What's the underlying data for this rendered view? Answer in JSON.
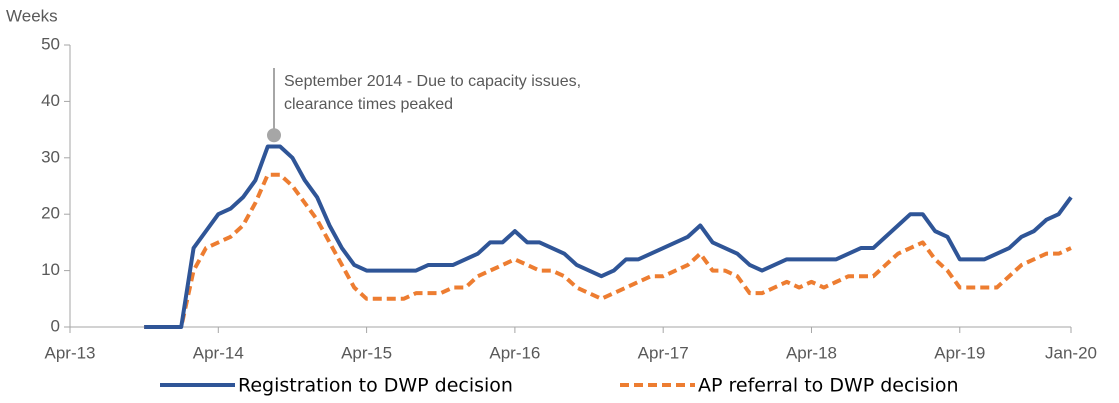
{
  "chart_data": {
    "type": "line",
    "y_label": "Weeks",
    "categories": [
      "Apr-13",
      null,
      null,
      null,
      null,
      null,
      null,
      null,
      null,
      null,
      null,
      null,
      "Apr-14",
      null,
      null,
      null,
      null,
      null,
      null,
      null,
      null,
      null,
      null,
      null,
      "Apr-15",
      null,
      null,
      null,
      null,
      null,
      null,
      null,
      null,
      null,
      null,
      null,
      "Apr-16",
      null,
      null,
      null,
      null,
      null,
      null,
      null,
      null,
      null,
      null,
      null,
      "Apr-17",
      null,
      null,
      null,
      null,
      null,
      null,
      null,
      null,
      null,
      null,
      null,
      "Apr-18",
      null,
      null,
      null,
      null,
      null,
      null,
      null,
      null,
      null,
      null,
      null,
      "Apr-19",
      null,
      null,
      null,
      null,
      null,
      null,
      null,
      null,
      "Jan-20"
    ],
    "series": [
      {
        "name": "Registration to DWP decision",
        "color": "#2f5597",
        "dash": false,
        "values": [
          null,
          null,
          null,
          null,
          null,
          null,
          0,
          0,
          0,
          0,
          14,
          17,
          20,
          21,
          23,
          26,
          32,
          32,
          30,
          26,
          23,
          18,
          14,
          11,
          10,
          10,
          10,
          10,
          10,
          11,
          11,
          11,
          12,
          13,
          15,
          15,
          17,
          15,
          15,
          14,
          13,
          11,
          10,
          9,
          10,
          12,
          12,
          13,
          14,
          15,
          16,
          18,
          15,
          14,
          13,
          11,
          10,
          11,
          12,
          12,
          12,
          12,
          12,
          13,
          14,
          14,
          16,
          18,
          20,
          20,
          17,
          16,
          12,
          12,
          12,
          13,
          14,
          16,
          17,
          19,
          20,
          23
        ]
      },
      {
        "name": "AP referral to DWP decision",
        "color": "#ed7d31",
        "dash": true,
        "values": [
          null,
          null,
          null,
          null,
          null,
          null,
          0,
          0,
          0,
          0,
          10,
          14,
          15,
          16,
          18,
          22,
          27,
          27,
          25,
          22,
          19,
          15,
          11,
          7,
          5,
          5,
          5,
          5,
          6,
          6,
          6,
          7,
          7,
          9,
          10,
          11,
          12,
          11,
          10,
          10,
          9,
          7,
          6,
          5,
          6,
          7,
          8,
          9,
          9,
          10,
          11,
          13,
          10,
          10,
          9,
          6,
          6,
          7,
          8,
          7,
          8,
          7,
          8,
          9,
          9,
          9,
          11,
          13,
          14,
          15,
          12,
          10,
          7,
          7,
          7,
          7,
          9,
          11,
          12,
          13,
          13,
          14
        ]
      }
    ],
    "annotation": {
      "lines": [
        "September 2014 - Due to capacity issues,",
        "clearance times peaked"
      ],
      "value": 34
    },
    "ylim": [
      0,
      50
    ],
    "yticks": [
      0,
      10,
      20,
      30,
      40,
      50
    ],
    "grid": false,
    "legend": "bottom"
  }
}
